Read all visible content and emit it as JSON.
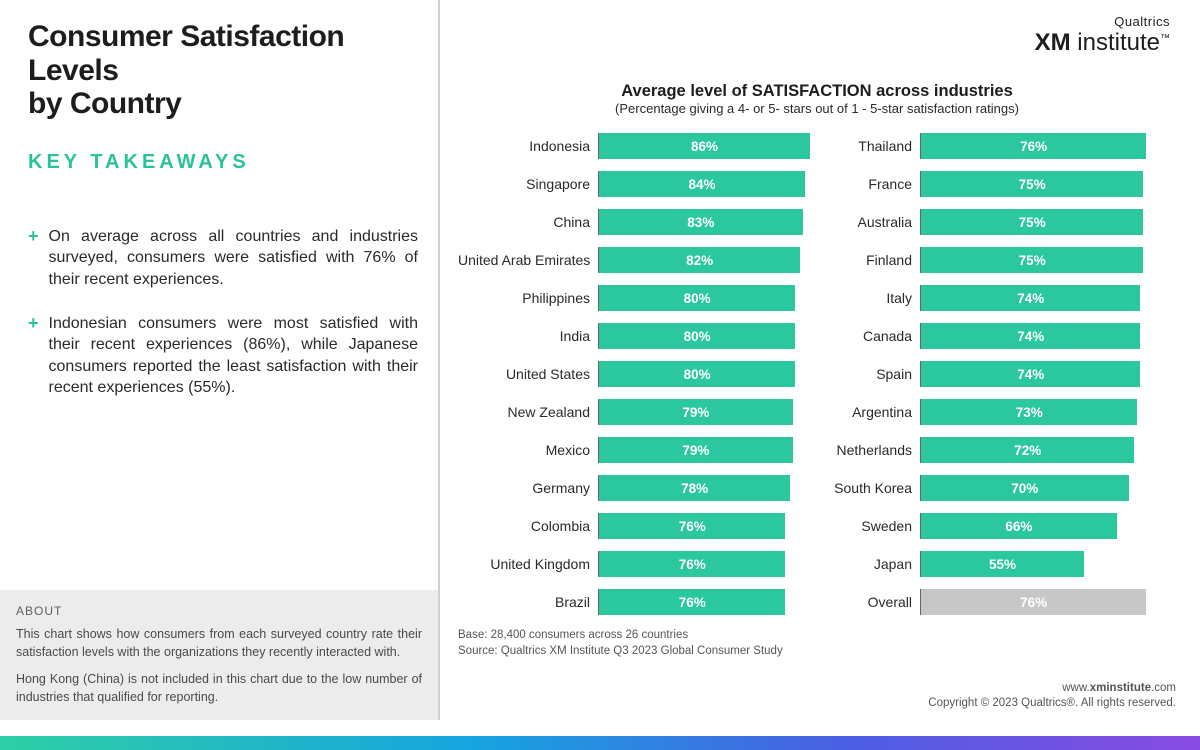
{
  "title_line1": "Consumer Satisfaction Levels",
  "title_line2": "by Country",
  "key_takeaways_heading": "KEY TAKEAWAYS",
  "bullets": [
    "On average across all countries and industries surveyed, consumers were satisfied with 76% of their recent experiences.",
    "Indonesian consumers were most satisfied with their recent experiences (86%), while Japanese consumers reported the least satisfaction with their recent experiences (55%)."
  ],
  "about": {
    "heading": "ABOUT",
    "p1": "This chart shows how consumers from each surveyed country rate their satisfaction levels with the organizations they recently interacted with.",
    "p2": "Hong Kong (China) is not included in this chart due to the low number of industries that qualified for reporting."
  },
  "logo": {
    "top": "Qualtrics",
    "bold": "XM",
    "rest": " institute",
    "tm": "™"
  },
  "chart": {
    "title": "Average level of SATISFACTION across industries",
    "subtitle": "(Percentage giving a 4- or 5- stars out of 1 - 5-star satisfaction ratings)",
    "bar_color": "#2bc8a0",
    "overall_color": "#c7c7c7",
    "value_text_color": "#ffffff",
    "label_color": "#2a2a2a",
    "max_pct": 100,
    "bar_scale_pct": 86,
    "left": [
      {
        "label": "Indonesia",
        "value": 86,
        "display": "86%"
      },
      {
        "label": "Singapore",
        "value": 84,
        "display": "84%"
      },
      {
        "label": "China",
        "value": 83,
        "display": "83%"
      },
      {
        "label": "United Arab Emirates",
        "value": 82,
        "display": "82%"
      },
      {
        "label": "Philippines",
        "value": 80,
        "display": "80%"
      },
      {
        "label": "India",
        "value": 80,
        "display": "80%"
      },
      {
        "label": "United States",
        "value": 80,
        "display": "80%"
      },
      {
        "label": "New Zealand",
        "value": 79,
        "display": "79%"
      },
      {
        "label": "Mexico",
        "value": 79,
        "display": "79%"
      },
      {
        "label": "Germany",
        "value": 78,
        "display": "78%"
      },
      {
        "label": "Colombia",
        "value": 76,
        "display": "76%"
      },
      {
        "label": "United Kingdom",
        "value": 76,
        "display": "76%"
      },
      {
        "label": "Brazil",
        "value": 76,
        "display": "76%"
      }
    ],
    "right": [
      {
        "label": "Thailand",
        "value": 76,
        "display": "76%"
      },
      {
        "label": "France",
        "value": 75,
        "display": "75%"
      },
      {
        "label": "Australia",
        "value": 75,
        "display": "75%"
      },
      {
        "label": "Finland",
        "value": 75,
        "display": "75%"
      },
      {
        "label": "Italy",
        "value": 74,
        "display": "74%"
      },
      {
        "label": "Canada",
        "value": 74,
        "display": "74%"
      },
      {
        "label": "Spain",
        "value": 74,
        "display": "74%"
      },
      {
        "label": "Argentina",
        "value": 73,
        "display": "73%"
      },
      {
        "label": "Netherlands",
        "value": 72,
        "display": "72%"
      },
      {
        "label": "South Korea",
        "value": 70,
        "display": "70%"
      },
      {
        "label": "Sweden",
        "value": 66,
        "display": "66%"
      },
      {
        "label": "Japan",
        "value": 55,
        "display": "55%"
      },
      {
        "label": "Overall",
        "value": 76,
        "display": "76%",
        "overall": true
      }
    ]
  },
  "footnotes": {
    "base": "Base: 28,400 consumers across 26 countries",
    "source": "Source: Qualtrics XM Institute Q3 2023 Global Consumer Study"
  },
  "copyright": {
    "site": "www.xminstitute.com",
    "text": "Copyright © 2023 Qualtrics®. All rights reserved."
  }
}
